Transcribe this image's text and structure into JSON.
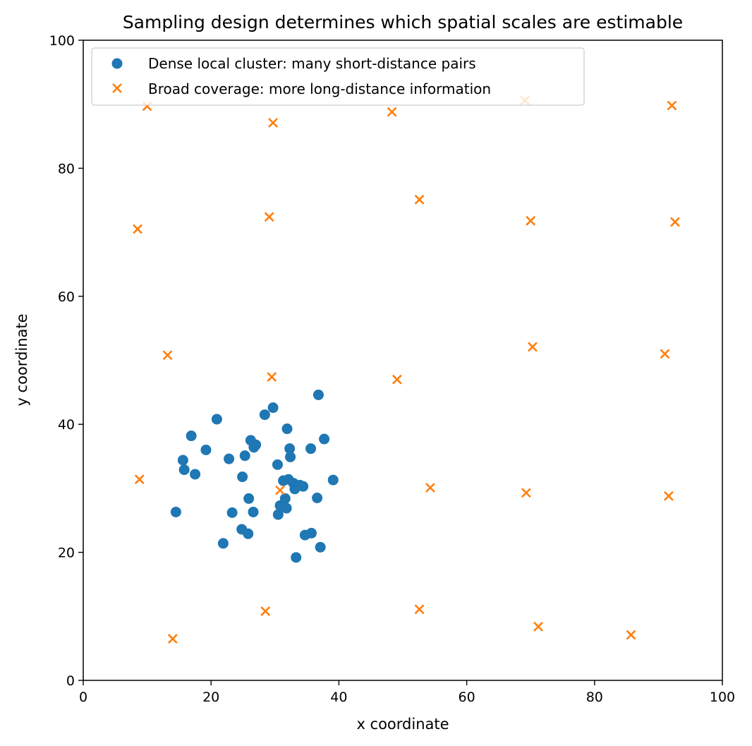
{
  "chart_data": {
    "type": "scatter",
    "title": "Sampling design determines which spatial scales are estimable",
    "xlabel": "x coordinate",
    "ylabel": "y coordinate",
    "xlim": [
      0,
      100
    ],
    "ylim": [
      0,
      100
    ],
    "xticks": [
      "0",
      "20",
      "40",
      "60",
      "80",
      "100"
    ],
    "yticks": [
      "0",
      "20",
      "40",
      "60",
      "80",
      "100"
    ],
    "grid": false,
    "legend_position": "top-left",
    "series": [
      {
        "name": "Dense local cluster: many short-distance pairs",
        "marker": "circle",
        "color": "#1f77b4",
        "points": [
          [
            14.5,
            26.3
          ],
          [
            15.6,
            34.4
          ],
          [
            15.8,
            32.9
          ],
          [
            16.9,
            38.2
          ],
          [
            17.5,
            32.2
          ],
          [
            19.2,
            36.0
          ],
          [
            20.9,
            40.8
          ],
          [
            21.9,
            21.4
          ],
          [
            22.8,
            34.6
          ],
          [
            23.3,
            26.2
          ],
          [
            24.8,
            23.6
          ],
          [
            24.9,
            31.8
          ],
          [
            25.3,
            35.1
          ],
          [
            25.8,
            22.9
          ],
          [
            25.9,
            28.4
          ],
          [
            26.2,
            37.5
          ],
          [
            26.6,
            26.3
          ],
          [
            26.7,
            36.4
          ],
          [
            27.0,
            36.8
          ],
          [
            28.4,
            41.5
          ],
          [
            29.7,
            42.6
          ],
          [
            30.4,
            33.7
          ],
          [
            30.5,
            25.9
          ],
          [
            30.8,
            27.3
          ],
          [
            31.3,
            31.2
          ],
          [
            31.6,
            28.4
          ],
          [
            31.8,
            26.9
          ],
          [
            31.9,
            39.3
          ],
          [
            32.1,
            31.4
          ],
          [
            32.3,
            36.2
          ],
          [
            32.4,
            34.9
          ],
          [
            32.9,
            30.8
          ],
          [
            33.1,
            29.9
          ],
          [
            33.3,
            19.2
          ],
          [
            33.9,
            30.5
          ],
          [
            34.4,
            30.3
          ],
          [
            34.7,
            22.7
          ],
          [
            35.6,
            36.2
          ],
          [
            35.7,
            23.0
          ],
          [
            36.6,
            28.5
          ],
          [
            36.8,
            44.6
          ],
          [
            37.1,
            20.8
          ],
          [
            37.7,
            37.7
          ],
          [
            39.1,
            31.3
          ]
        ]
      },
      {
        "name": "Broad coverage: more long-distance information",
        "marker": "x",
        "color": "#ff7f0e",
        "points": [
          [
            10.0,
            89.7
          ],
          [
            29.7,
            87.1
          ],
          [
            48.3,
            88.8
          ],
          [
            69.1,
            90.6
          ],
          [
            92.1,
            89.8
          ],
          [
            8.5,
            70.5
          ],
          [
            29.1,
            72.4
          ],
          [
            52.6,
            75.1
          ],
          [
            70.0,
            71.8
          ],
          [
            92.6,
            71.6
          ],
          [
            13.2,
            50.8
          ],
          [
            29.5,
            47.4
          ],
          [
            49.1,
            47.0
          ],
          [
            70.3,
            52.1
          ],
          [
            91.0,
            51.0
          ],
          [
            8.8,
            31.4
          ],
          [
            30.8,
            29.7
          ],
          [
            54.3,
            30.1
          ],
          [
            69.3,
            29.3
          ],
          [
            91.6,
            28.8
          ],
          [
            14.0,
            6.5
          ],
          [
            28.5,
            10.8
          ],
          [
            52.6,
            11.1
          ],
          [
            71.2,
            8.4
          ],
          [
            85.7,
            7.1
          ]
        ]
      }
    ]
  }
}
